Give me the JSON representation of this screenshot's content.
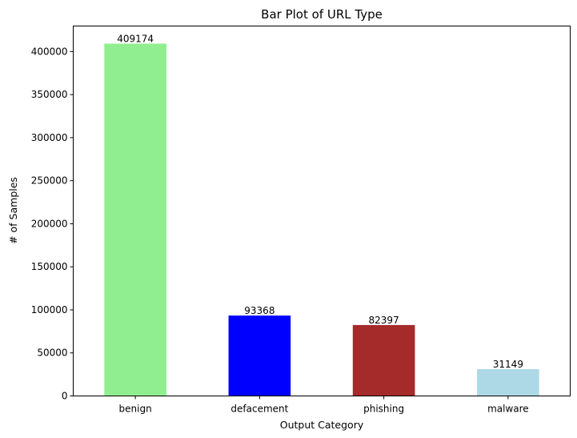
{
  "chart_data": {
    "type": "bar",
    "title": "Bar Plot of URL Type",
    "xlabel": "Output Category",
    "ylabel": "# of Samples",
    "categories": [
      "benign",
      "defacement",
      "phishing",
      "malware"
    ],
    "values": [
      409174,
      93368,
      82397,
      31149
    ],
    "data_labels": [
      "409174",
      "93368",
      "82397",
      "31149"
    ],
    "colors": [
      "#90ee90",
      "#0000ff",
      "#a52a2a",
      "#add8e6"
    ],
    "ylim": [
      0,
      429632
    ],
    "yticks": [
      0,
      50000,
      100000,
      150000,
      200000,
      250000,
      300000,
      350000,
      400000
    ],
    "ytick_labels": [
      "0",
      "50000",
      "100000",
      "150000",
      "200000",
      "250000",
      "300000",
      "350000",
      "400000"
    ],
    "grid": false,
    "legend": "none"
  }
}
